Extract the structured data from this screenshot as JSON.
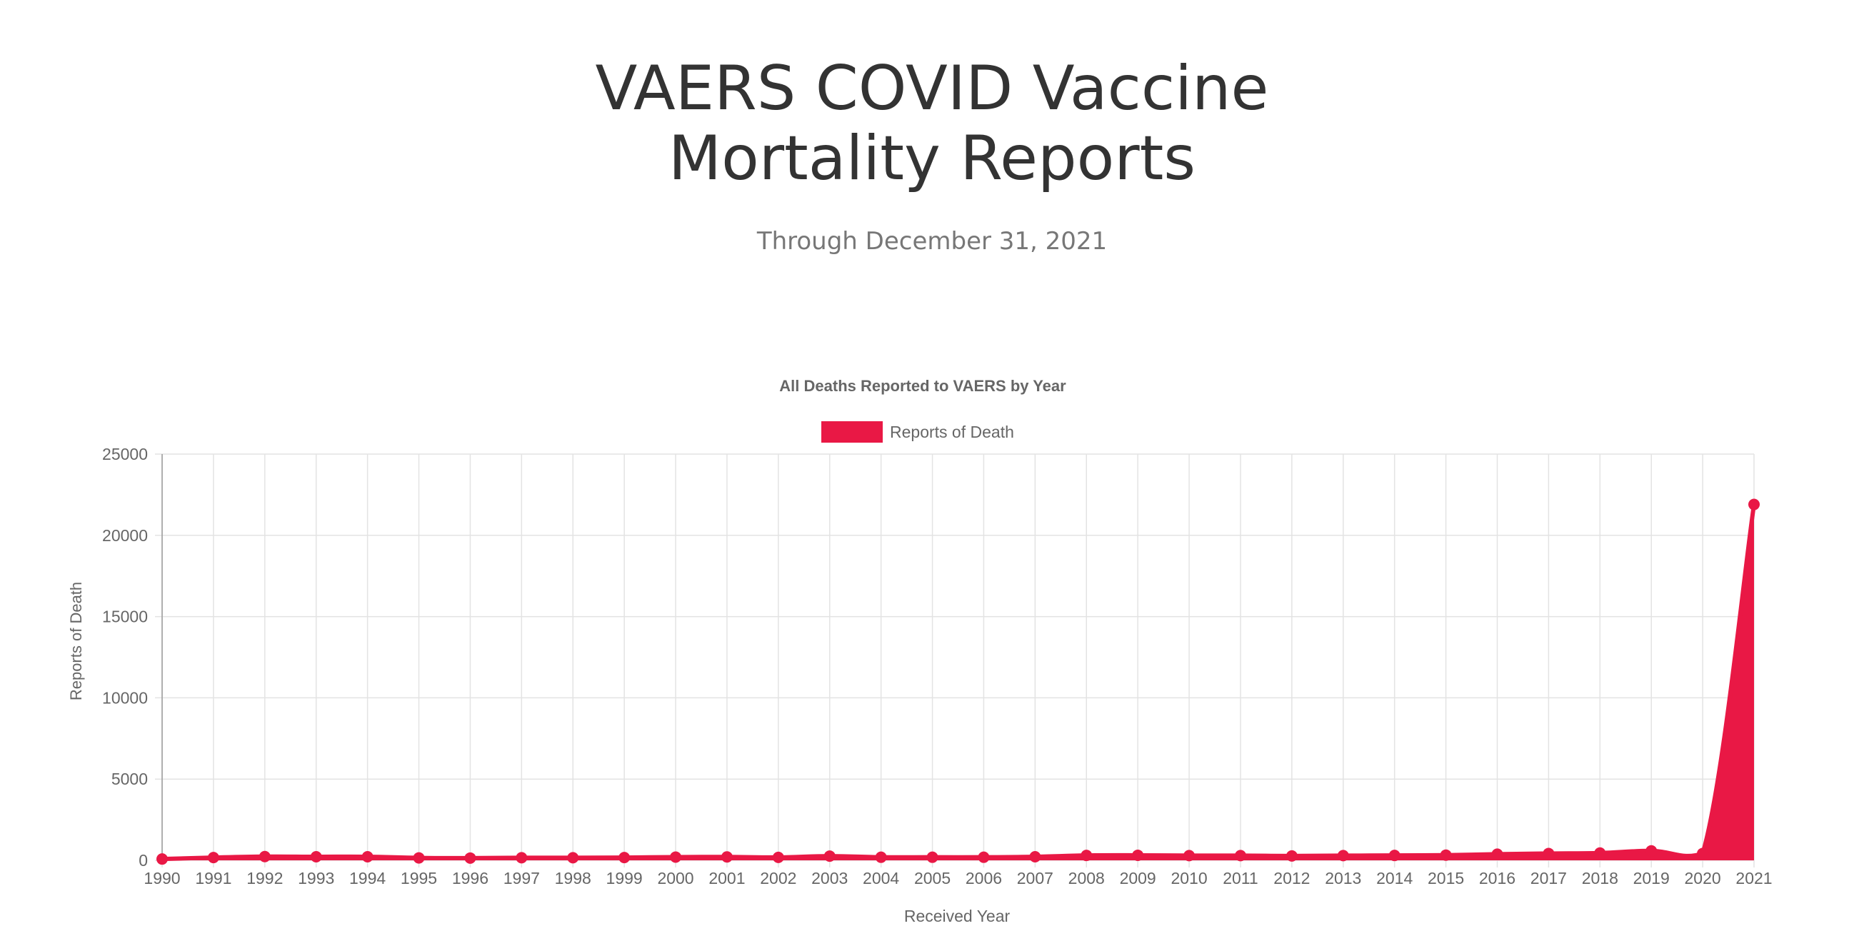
{
  "page": {
    "title_line1": "VAERS COVID Vaccine",
    "title_line2": "Mortality Reports",
    "subtitle": "Through December 31, 2021"
  },
  "colors": {
    "series": "#e91845",
    "grid": "#e3e3e3",
    "text": "#666666"
  },
  "chart_data": {
    "type": "area",
    "title": "All Deaths Reported to VAERS by Year",
    "xlabel": "Received Year",
    "ylabel": "Reports of Death",
    "legend_position": "top",
    "grid": true,
    "ylim": [
      0,
      25000
    ],
    "yticks": [
      0,
      5000,
      10000,
      15000,
      20000,
      25000
    ],
    "categories": [
      "1990",
      "1991",
      "1992",
      "1993",
      "1994",
      "1995",
      "1996",
      "1997",
      "1998",
      "1999",
      "2000",
      "2001",
      "2002",
      "2003",
      "2004",
      "2005",
      "2006",
      "2007",
      "2008",
      "2009",
      "2010",
      "2011",
      "2012",
      "2013",
      "2014",
      "2015",
      "2016",
      "2017",
      "2018",
      "2019",
      "2020",
      "2021"
    ],
    "series": [
      {
        "name": "Reports of Death",
        "values": [
          80,
          170,
          230,
          220,
          220,
          150,
          140,
          160,
          160,
          170,
          200,
          210,
          180,
          260,
          190,
          190,
          190,
          220,
          300,
          310,
          290,
          290,
          270,
          290,
          300,
          320,
          380,
          420,
          450,
          580,
          420,
          21900
        ]
      }
    ]
  }
}
